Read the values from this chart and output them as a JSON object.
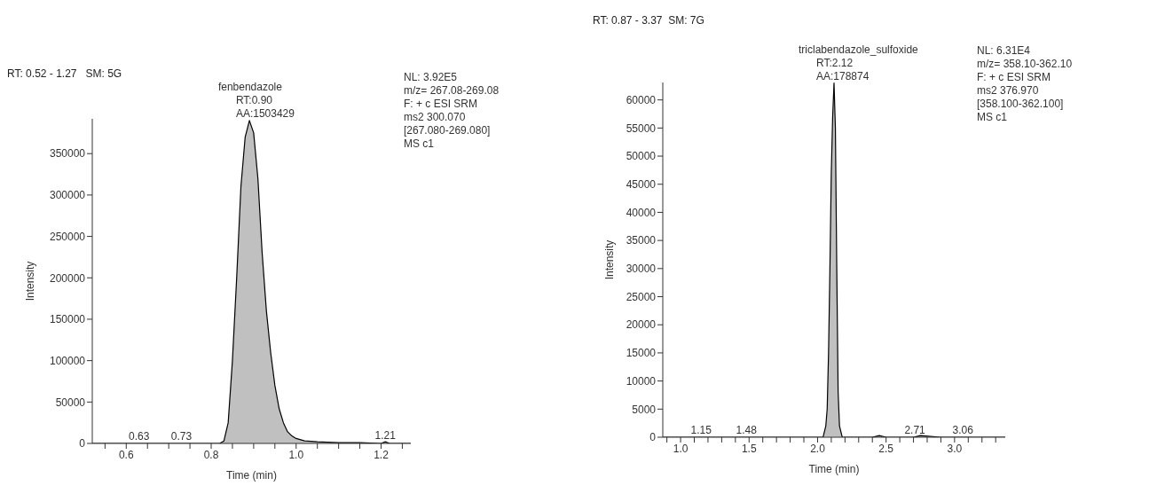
{
  "chart_data": [
    {
      "type": "area",
      "title": "RT: 0.52 - 1.27   SM: 5G",
      "xlabel": "Time (min)",
      "ylabel": "Intensity",
      "marker": "none",
      "line_style": "solid",
      "xlim": [
        0.52,
        1.27
      ],
      "xticks": [
        {
          "value": 0.55,
          "label": null
        },
        {
          "value": 0.6,
          "label": "0.6"
        },
        {
          "value": 0.65,
          "label": null
        },
        {
          "value": 0.7,
          "label": null
        },
        {
          "value": 0.75,
          "label": null
        },
        {
          "value": 0.8,
          "label": "0.8"
        },
        {
          "value": 0.85,
          "label": null
        },
        {
          "value": 0.9,
          "label": null
        },
        {
          "value": 0.95,
          "label": null
        },
        {
          "value": 1.0,
          "label": "1.0"
        },
        {
          "value": 1.05,
          "label": null
        },
        {
          "value": 1.1,
          "label": null
        },
        {
          "value": 1.15,
          "label": null
        },
        {
          "value": 1.2,
          "label": "1.2"
        },
        {
          "value": 1.25,
          "label": null
        }
      ],
      "ylim": [
        0,
        392000
      ],
      "yticks": [
        0,
        50000,
        100000,
        150000,
        200000,
        250000,
        300000,
        350000
      ],
      "series": [
        {
          "color": "#c0c0c0",
          "x": [
            0.52,
            0.6,
            0.7,
            0.8,
            0.82,
            0.83,
            0.84,
            0.85,
            0.86,
            0.87,
            0.88,
            0.89,
            0.9,
            0.91,
            0.92,
            0.93,
            0.94,
            0.95,
            0.96,
            0.97,
            0.98,
            0.99,
            1.0,
            1.02,
            1.05,
            1.1,
            1.15,
            1.2,
            1.21,
            1.22,
            1.27
          ],
          "values": [
            0,
            0,
            0,
            0,
            0,
            3000,
            25000,
            100000,
            200000,
            310000,
            370000,
            390000,
            375000,
            320000,
            230000,
            160000,
            110000,
            70000,
            42000,
            25000,
            14000,
            9000,
            6000,
            3000,
            2000,
            1000,
            1000,
            0,
            2000,
            0,
            0
          ]
        }
      ],
      "annotations": [
        {
          "text": "fenbendazole\nRT:0.90\nAA:1503429",
          "x": 0.9,
          "y": 390000
        },
        {
          "text": "0.63",
          "x": 0.63,
          "y": 0
        },
        {
          "text": "0.73",
          "x": 0.73,
          "y": 0
        },
        {
          "text": "1.21",
          "x": 1.21,
          "y": 1500
        },
        "NL: 3.92E5\nm/z= 267.08-269.08\nF: + c ESI SRM\nms2 300.070\n[267.080-269.080]\nMS c1"
      ]
    },
    {
      "type": "area",
      "title": "RT: 0.87 - 3.37  SM: 7G",
      "xlabel": "Time (min)",
      "ylabel": "Intensity",
      "marker": "none",
      "line_style": "solid",
      "xlim": [
        0.87,
        3.37
      ],
      "xticks": [
        {
          "value": 0.9,
          "label": null
        },
        {
          "value": 1.0,
          "label": "1.0"
        },
        {
          "value": 1.1,
          "label": null
        },
        {
          "value": 1.2,
          "label": null
        },
        {
          "value": 1.3,
          "label": null
        },
        {
          "value": 1.4,
          "label": null
        },
        {
          "value": 1.5,
          "label": "1.5"
        },
        {
          "value": 1.6,
          "label": null
        },
        {
          "value": 1.7,
          "label": null
        },
        {
          "value": 1.8,
          "label": null
        },
        {
          "value": 1.9,
          "label": null
        },
        {
          "value": 2.0,
          "label": "2.0"
        },
        {
          "value": 2.1,
          "label": null
        },
        {
          "value": 2.2,
          "label": null
        },
        {
          "value": 2.3,
          "label": null
        },
        {
          "value": 2.4,
          "label": null
        },
        {
          "value": 2.5,
          "label": "2.5"
        },
        {
          "value": 2.6,
          "label": null
        },
        {
          "value": 2.7,
          "label": null
        },
        {
          "value": 2.8,
          "label": null
        },
        {
          "value": 2.9,
          "label": null
        },
        {
          "value": 3.0,
          "label": "3.0"
        },
        {
          "value": 3.1,
          "label": null
        },
        {
          "value": 3.2,
          "label": null
        },
        {
          "value": 3.3,
          "label": null
        }
      ],
      "ylim": [
        0,
        63100
      ],
      "yticks": [
        0,
        5000,
        10000,
        15000,
        20000,
        25000,
        30000,
        35000,
        40000,
        45000,
        50000,
        55000,
        60000
      ],
      "series": [
        {
          "color": "#c0c0c0",
          "x": [
            0.87,
            1.5,
            2.0,
            2.04,
            2.06,
            2.07,
            2.08,
            2.09,
            2.1,
            2.11,
            2.12,
            2.13,
            2.14,
            2.15,
            2.16,
            2.18,
            2.4,
            2.45,
            2.5,
            2.7,
            2.75,
            2.9,
            3.37
          ],
          "values": [
            0,
            0,
            0,
            0,
            2000,
            5000,
            15000,
            30000,
            47000,
            57000,
            63000,
            55000,
            30000,
            8000,
            2000,
            0,
            0,
            300,
            0,
            0,
            300,
            0,
            0
          ]
        }
      ],
      "annotations": [
        {
          "text": "triclabendazole_sulfoxide\nRT:2.12\nAA:178874",
          "x": 2.12,
          "y": 63000
        },
        {
          "text": "1.15",
          "x": 1.15,
          "y": 0
        },
        {
          "text": "1.48",
          "x": 1.48,
          "y": 0
        },
        {
          "text": "2.71",
          "x": 2.71,
          "y": 0
        },
        {
          "text": "3.06",
          "x": 3.06,
          "y": 0
        },
        "NL: 6.31E4\nm/z= 358.10-362.10\nF: + c ESI SRM\nms2 376.970\n[358.100-362.100]\nMS c1"
      ]
    }
  ]
}
